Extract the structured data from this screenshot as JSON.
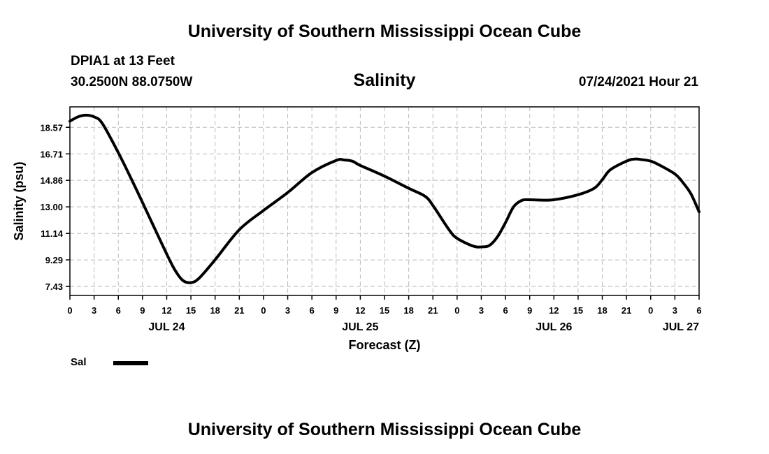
{
  "header": {
    "top_title": "University of Southern Mississippi Ocean Cube",
    "station": "DPIA1 at 13 Feet",
    "coords": "30.2500N  88.0750W",
    "datetime": "07/24/2021 Hour 21",
    "bottom_title": "University of Southern Mississippi Ocean Cube"
  },
  "legend": {
    "label": "Sal",
    "color": "#000000"
  },
  "chart_data": {
    "type": "line",
    "title": "Salinity",
    "xlabel": "Forecast (Z)",
    "ylabel": "Salinity (psu)",
    "xlim": [
      0,
      78
    ],
    "ylim": [
      6.8,
      20.0
    ],
    "yticks": [
      7.43,
      9.29,
      11.14,
      13.0,
      14.86,
      16.71,
      18.57
    ],
    "ytick_labels": [
      "7.43",
      "9.29",
      "11.14",
      "13.00",
      "14.86",
      "16.71",
      "18.57"
    ],
    "xticks": [
      0,
      3,
      6,
      9,
      12,
      15,
      18,
      21,
      24,
      27,
      30,
      33,
      36,
      39,
      42,
      45,
      48,
      51,
      54,
      57,
      60,
      63,
      66,
      69,
      72,
      75,
      78
    ],
    "xtick_labels": [
      "0",
      "3",
      "6",
      "9",
      "12",
      "15",
      "18",
      "21",
      "0",
      "3",
      "6",
      "9",
      "12",
      "15",
      "18",
      "21",
      "0",
      "3",
      "6",
      "9",
      "12",
      "15",
      "18",
      "21",
      "0",
      "3",
      "6"
    ],
    "date_labels": [
      {
        "x": 12,
        "label": "JUL 24"
      },
      {
        "x": 36,
        "label": "JUL 25"
      },
      {
        "x": 60,
        "label": "JUL 26"
      },
      {
        "x": 78,
        "label": "JUL 27"
      }
    ],
    "grid": true,
    "series": [
      {
        "name": "Sal",
        "x": [
          0,
          1,
          2,
          3,
          4,
          6,
          8,
          10,
          12,
          13,
          14,
          15,
          16,
          18,
          21,
          24,
          27,
          30,
          33,
          34,
          35,
          36,
          39,
          42,
          44,
          45,
          47,
          48,
          50,
          51,
          52,
          53,
          54,
          55,
          56,
          57,
          58,
          60,
          63,
          65,
          66,
          67,
          69,
          70,
          71,
          72,
          73,
          75,
          76,
          77,
          78
        ],
        "y": [
          19.0,
          19.3,
          19.42,
          19.3,
          18.85,
          16.8,
          14.5,
          12.1,
          9.7,
          8.6,
          7.85,
          7.7,
          8.0,
          9.3,
          11.4,
          12.75,
          14.0,
          15.4,
          16.25,
          16.28,
          16.2,
          15.9,
          15.15,
          14.3,
          13.75,
          13.1,
          11.4,
          10.8,
          10.25,
          10.2,
          10.3,
          10.9,
          11.9,
          13.0,
          13.45,
          13.5,
          13.48,
          13.5,
          13.85,
          14.3,
          14.9,
          15.6,
          16.2,
          16.35,
          16.3,
          16.2,
          15.95,
          15.3,
          14.7,
          13.9,
          12.65
        ]
      }
    ]
  }
}
